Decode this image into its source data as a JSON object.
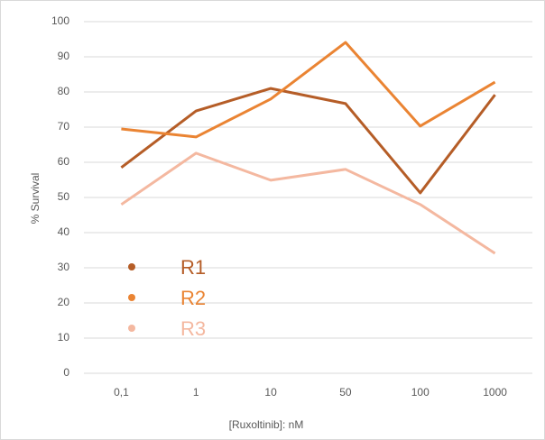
{
  "chart_data": {
    "type": "line",
    "xlabel": "[Ruxoltinib]: nM",
    "ylabel": "% Survival",
    "categories": [
      "0,1",
      "1",
      "10",
      "50",
      "100",
      "1000"
    ],
    "series": [
      {
        "name": "R1",
        "color": "#b55d27",
        "values": [
          58.5,
          74.6,
          81,
          76.7,
          51.3,
          79.2
        ]
      },
      {
        "name": "R2",
        "color": "#ea8433",
        "values": [
          69.5,
          67.2,
          78,
          94.1,
          70.3,
          82.8
        ]
      },
      {
        "name": "R3",
        "color": "#f4b8a0",
        "values": [
          48,
          62.6,
          54.9,
          58,
          48,
          34.1
        ]
      }
    ],
    "ylim": [
      0,
      100
    ],
    "yticks": [
      0,
      10,
      20,
      30,
      40,
      50,
      60,
      70,
      80,
      90,
      100
    ],
    "grid": true
  }
}
